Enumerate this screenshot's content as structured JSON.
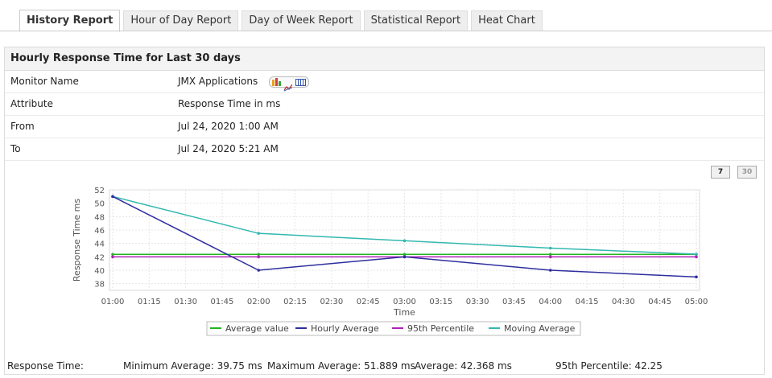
{
  "tabs": [
    {
      "label": "History Report",
      "active": true
    },
    {
      "label": "Hour of Day Report",
      "active": false
    },
    {
      "label": "Day of Week Report",
      "active": false
    },
    {
      "label": "Statistical Report",
      "active": false
    },
    {
      "label": "Heat Chart",
      "active": false
    }
  ],
  "report": {
    "title": "Hourly Response Time for Last 30 days",
    "rows": [
      {
        "key": "Monitor Name",
        "value": "JMX Applications"
      },
      {
        "key": "Attribute",
        "value": "Response Time in ms"
      },
      {
        "key": "From",
        "value": "Jul 24, 2020 1:00 AM"
      },
      {
        "key": "To",
        "value": "Jul 24, 2020 5:21 AM"
      }
    ],
    "period_buttons": [
      "7",
      "30"
    ]
  },
  "chart_data": {
    "type": "line",
    "xlabel": "Time",
    "ylabel": "Response Time ms",
    "ylim": [
      37,
      52
    ],
    "yticks": [
      38,
      40,
      42,
      44,
      46,
      48,
      50,
      52
    ],
    "xticks": [
      "01:00",
      "01:15",
      "01:30",
      "01:45",
      "02:00",
      "02:15",
      "02:30",
      "02:45",
      "03:00",
      "03:15",
      "03:30",
      "03:45",
      "04:00",
      "04:15",
      "04:30",
      "04:45",
      "05:00"
    ],
    "x": [
      "01:00",
      "02:00",
      "03:00",
      "04:00",
      "05:00"
    ],
    "grid": true,
    "legend_position": "bottom",
    "series": [
      {
        "name": "Average value",
        "color": "#22b522",
        "values": [
          42.368,
          42.368,
          42.368,
          42.368,
          42.368
        ]
      },
      {
        "name": "Hourly Average",
        "color": "#2e2e9e",
        "values": [
          51,
          40,
          42,
          40,
          39
        ]
      },
      {
        "name": "95th Percentile",
        "color": "#b020b8",
        "values": [
          42,
          42,
          42,
          42,
          42
        ]
      },
      {
        "name": "Moving Average",
        "color": "#33b8b0",
        "values": [
          51,
          45.5,
          44.4,
          43.3,
          42.4
        ]
      }
    ]
  },
  "summary": {
    "label": "Response Time:",
    "min_label": "Minimum Average:",
    "min_value": "39.75",
    "min_unit": "ms",
    "max_label": "Maximum Average:",
    "max_value": "51.889",
    "max_unit": "ms",
    "avg_label": "Average:",
    "avg_value": "42.368",
    "avg_unit": "ms",
    "p95_label": "95th Percentile:",
    "p95_value": "42.25"
  }
}
